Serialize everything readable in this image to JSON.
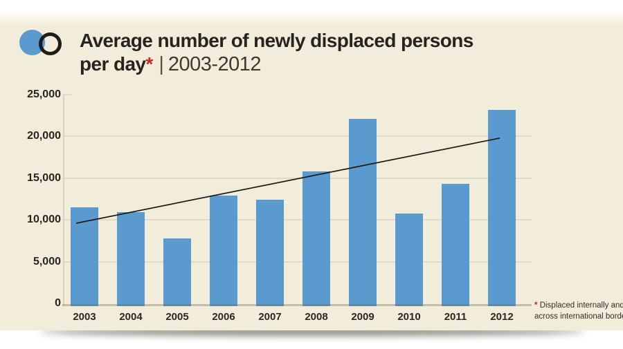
{
  "header": {
    "title_line1": "Average number of newly displaced persons",
    "title_line2_bold": "per day",
    "asterisk": "*",
    "separator": "|",
    "period": "2003-2012"
  },
  "footnote": {
    "asterisk": "*",
    "line1": "Displaced internally and",
    "line2": "across international borders"
  },
  "colors": {
    "card_background": "#f2edda",
    "bar_blue": "#5a9ace",
    "accent_red": "#c1272d",
    "text_dark": "#272420",
    "gridline": "#e1dac6",
    "trend_line": "#1b1915"
  },
  "chart_data": {
    "type": "bar",
    "title": "Average number of newly displaced persons per day* | 2003-2012",
    "categories": [
      "2003",
      "2004",
      "2005",
      "2006",
      "2007",
      "2008",
      "2009",
      "2010",
      "2011",
      "2012"
    ],
    "values": [
      11500,
      10900,
      7800,
      12900,
      12400,
      15800,
      22100,
      10800,
      14300,
      23200
    ],
    "xlabel": "",
    "ylabel": "",
    "ylim": [
      0,
      25000
    ],
    "ytick_interval": 5000,
    "ytick_labels": [
      "0",
      "5,000",
      "10,000",
      "15,000",
      "20,000",
      "25,000"
    ],
    "grid": true,
    "legend": "none",
    "bar_color": "#5a9ace",
    "trendline": {
      "start_year": "2003",
      "start_value": 9600,
      "end_year": "2012",
      "end_value": 19800,
      "color": "#1b1915"
    }
  }
}
